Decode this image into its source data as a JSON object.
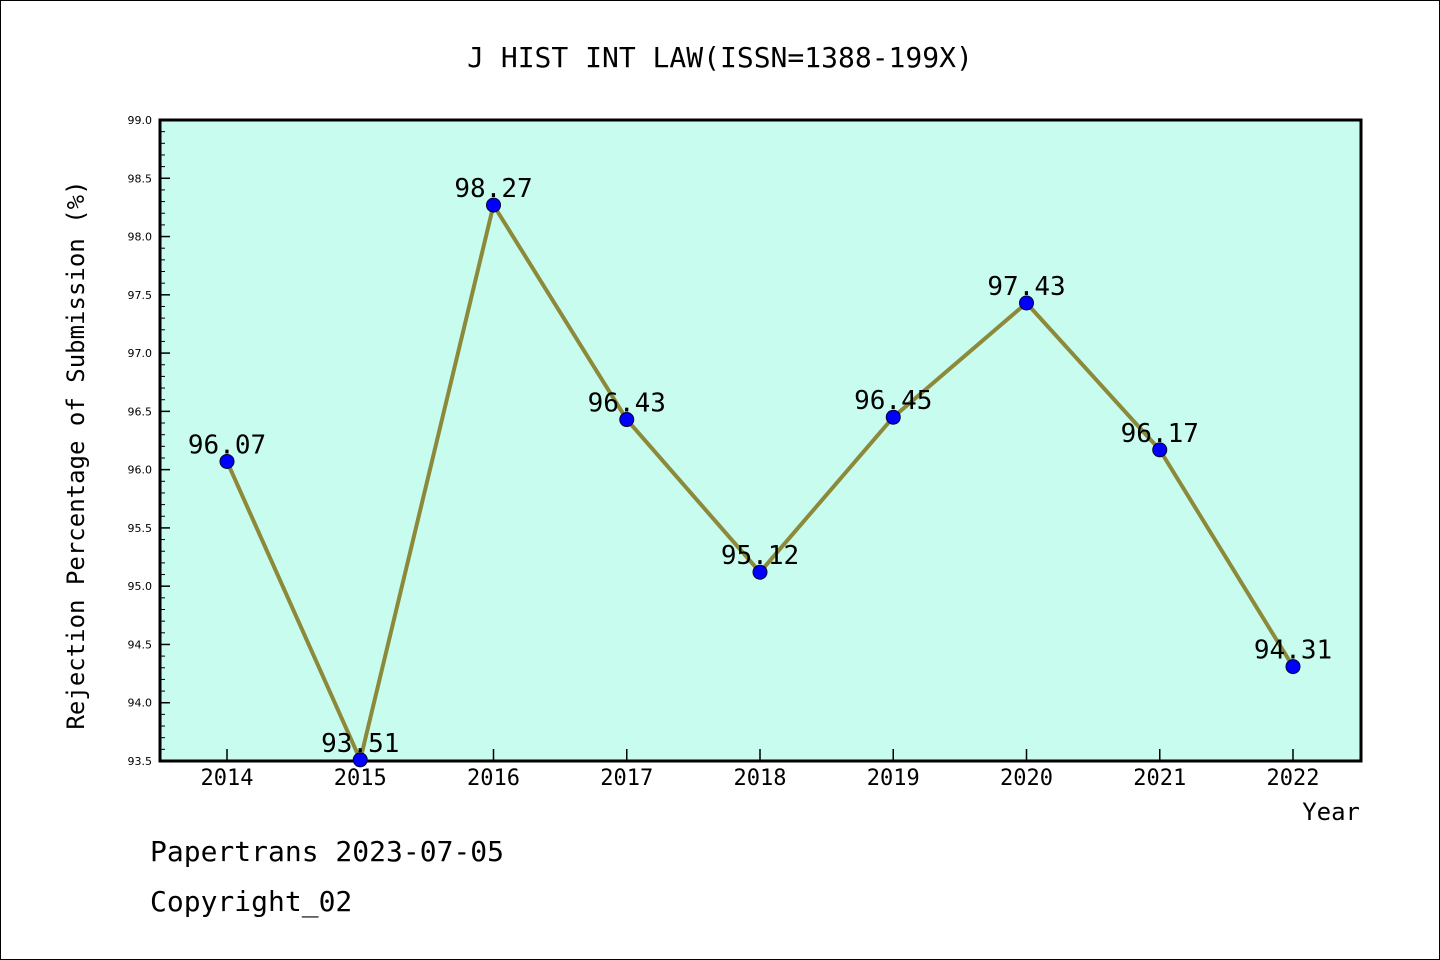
{
  "chart_data": {
    "type": "line",
    "title": "J HIST INT LAW(ISSN=1388-199X)",
    "xlabel": "Year",
    "ylabel": "Rejection Percentage of Submission (%)",
    "categories": [
      "2014",
      "2015",
      "2016",
      "2017",
      "2018",
      "2019",
      "2020",
      "2021",
      "2022"
    ],
    "values": [
      96.07,
      93.51,
      98.27,
      96.43,
      95.12,
      96.45,
      97.43,
      96.17,
      94.31
    ],
    "data_labels": [
      "96.07",
      "93.51",
      "98.27",
      "96.43",
      "95.12",
      "96.45",
      "97.43",
      "96.17",
      "94.31"
    ],
    "ylim": [
      93.5,
      99.0
    ],
    "yticks": [
      "93.5",
      "94.0",
      "94.5",
      "95.0",
      "95.5",
      "96.0",
      "96.5",
      "97.0",
      "97.5",
      "98.0",
      "98.5",
      "99.0"
    ],
    "grid": false,
    "legend": "none",
    "colors": {
      "plot_background": "#c8fcee",
      "line": "#8c8a3a",
      "marker": "#0000ff",
      "axis": "#000000"
    }
  },
  "footer": {
    "line1": "Papertrans 2023-07-05",
    "line2": "Copyright_02"
  }
}
